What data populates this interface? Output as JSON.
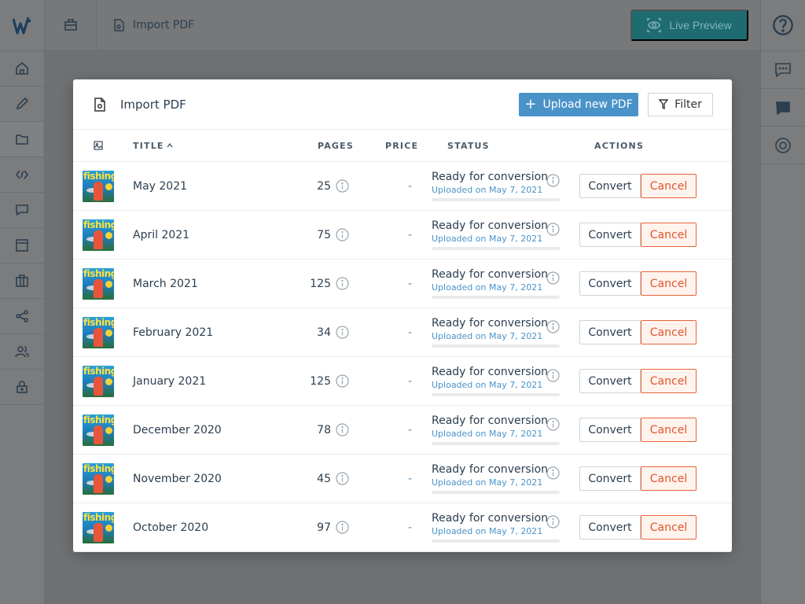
{
  "app": {
    "breadcrumb": {
      "current": "Import PDF"
    },
    "live_preview_label": "Live Preview",
    "left_nav": [
      "home",
      "edit",
      "folder",
      "code",
      "comments",
      "layout",
      "briefcase",
      "share",
      "users",
      "lock"
    ],
    "right_nav": [
      "help",
      "chat",
      "discord",
      "target"
    ]
  },
  "modal": {
    "title": "Import PDF",
    "upload_label": "Upload new PDF",
    "filter_label": "Filter",
    "columns": {
      "title": "TITLE",
      "pages": "PAGES",
      "price": "PRICE",
      "status": "STATUS",
      "actions": "ACTIONS"
    },
    "sort": {
      "column": "title",
      "direction": "ascending"
    },
    "rows": [
      {
        "cover_text": "fishing",
        "title": "May 2021",
        "pages": "25",
        "price": "-",
        "status": "Ready for conversion",
        "uploaded": "Uploaded on May 7, 2021",
        "progress": 0,
        "convert": "Convert",
        "cancel": "Cancel"
      },
      {
        "cover_text": "fishing",
        "title": "April 2021",
        "pages": "75",
        "price": "-",
        "status": "Ready for conversion",
        "uploaded": "Uploaded on May 7, 2021",
        "progress": 0,
        "convert": "Convert",
        "cancel": "Cancel"
      },
      {
        "cover_text": "fishing",
        "title": "March 2021",
        "pages": "125",
        "price": "-",
        "status": "Ready for conversion",
        "uploaded": "Uploaded on May 7, 2021",
        "progress": 0,
        "convert": "Convert",
        "cancel": "Cancel"
      },
      {
        "cover_text": "fishing",
        "title": "February 2021",
        "pages": "34",
        "price": "-",
        "status": "Ready for conversion",
        "uploaded": "Uploaded on May 7, 2021",
        "progress": 0,
        "convert": "Convert",
        "cancel": "Cancel"
      },
      {
        "cover_text": "fishing",
        "title": "January 2021",
        "pages": "125",
        "price": "-",
        "status": "Ready for conversion",
        "uploaded": "Uploaded on May 7, 2021",
        "progress": 0,
        "convert": "Convert",
        "cancel": "Cancel"
      },
      {
        "cover_text": "fishing",
        "title": "December 2020",
        "pages": "78",
        "price": "-",
        "status": "Ready for conversion",
        "uploaded": "Uploaded on May 7, 2021",
        "progress": 0,
        "convert": "Convert",
        "cancel": "Cancel"
      },
      {
        "cover_text": "fishing",
        "title": "November 2020",
        "pages": "45",
        "price": "-",
        "status": "Ready for conversion",
        "uploaded": "Uploaded on May 7, 2021",
        "progress": 0,
        "convert": "Convert",
        "cancel": "Cancel"
      },
      {
        "cover_text": "fishing",
        "title": "October 2020",
        "pages": "97",
        "price": "-",
        "status": "Ready for conversion",
        "uploaded": "Uploaded on May 7, 2021",
        "progress": 0,
        "convert": "Convert",
        "cancel": "Cancel"
      }
    ]
  },
  "colors": {
    "accent": "#4a93c9",
    "cancel": "#e0552a",
    "live_preview": "#1f6b72"
  }
}
